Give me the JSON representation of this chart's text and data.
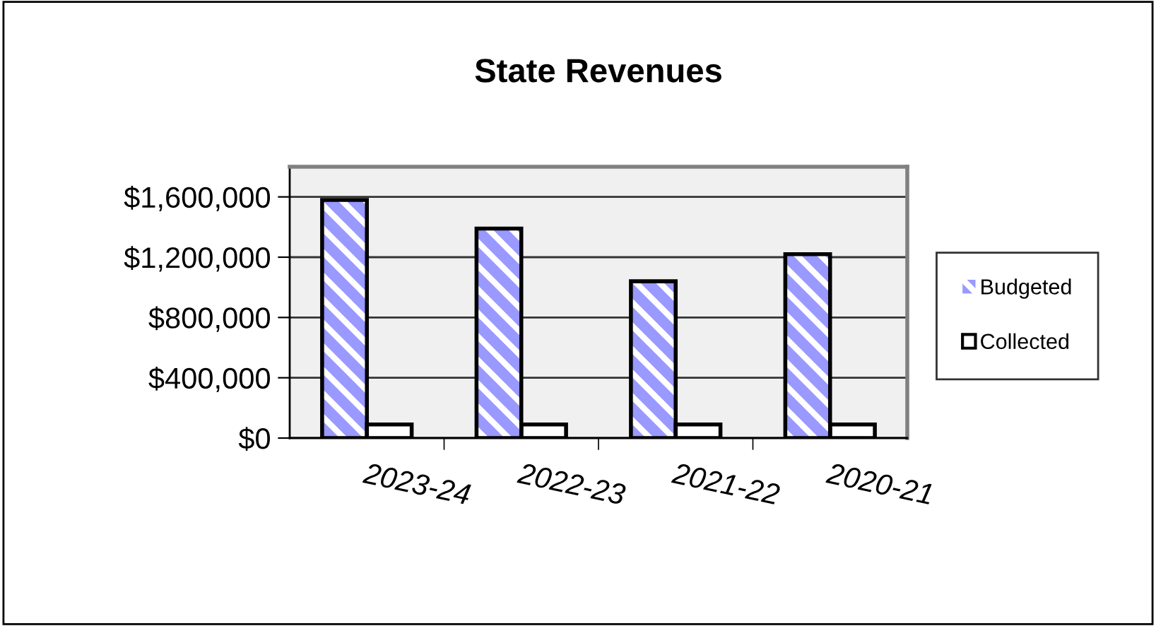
{
  "chart_data": {
    "type": "bar",
    "title": "State Revenues",
    "categories": [
      "2023-24",
      "2022-23",
      "2021-22",
      "2020-21"
    ],
    "series": [
      {
        "name": "Budgeted",
        "color": "#9999ff",
        "values": [
          1580000,
          1390000,
          1040000,
          1220000
        ]
      },
      {
        "name": "Collected",
        "color": "#ffffff",
        "values": [
          90000,
          90000,
          90000,
          90000
        ]
      }
    ],
    "ylim": [
      0,
      1800000
    ],
    "yticks": [
      {
        "value": 0,
        "label": "$0"
      },
      {
        "value": 400000,
        "label": "$400,000"
      },
      {
        "value": 800000,
        "label": "$800,000"
      },
      {
        "value": 1200000,
        "label": "$1,200,000"
      },
      {
        "value": 1600000,
        "label": "$1,600,000"
      }
    ],
    "grid": "y",
    "legend": "right"
  }
}
